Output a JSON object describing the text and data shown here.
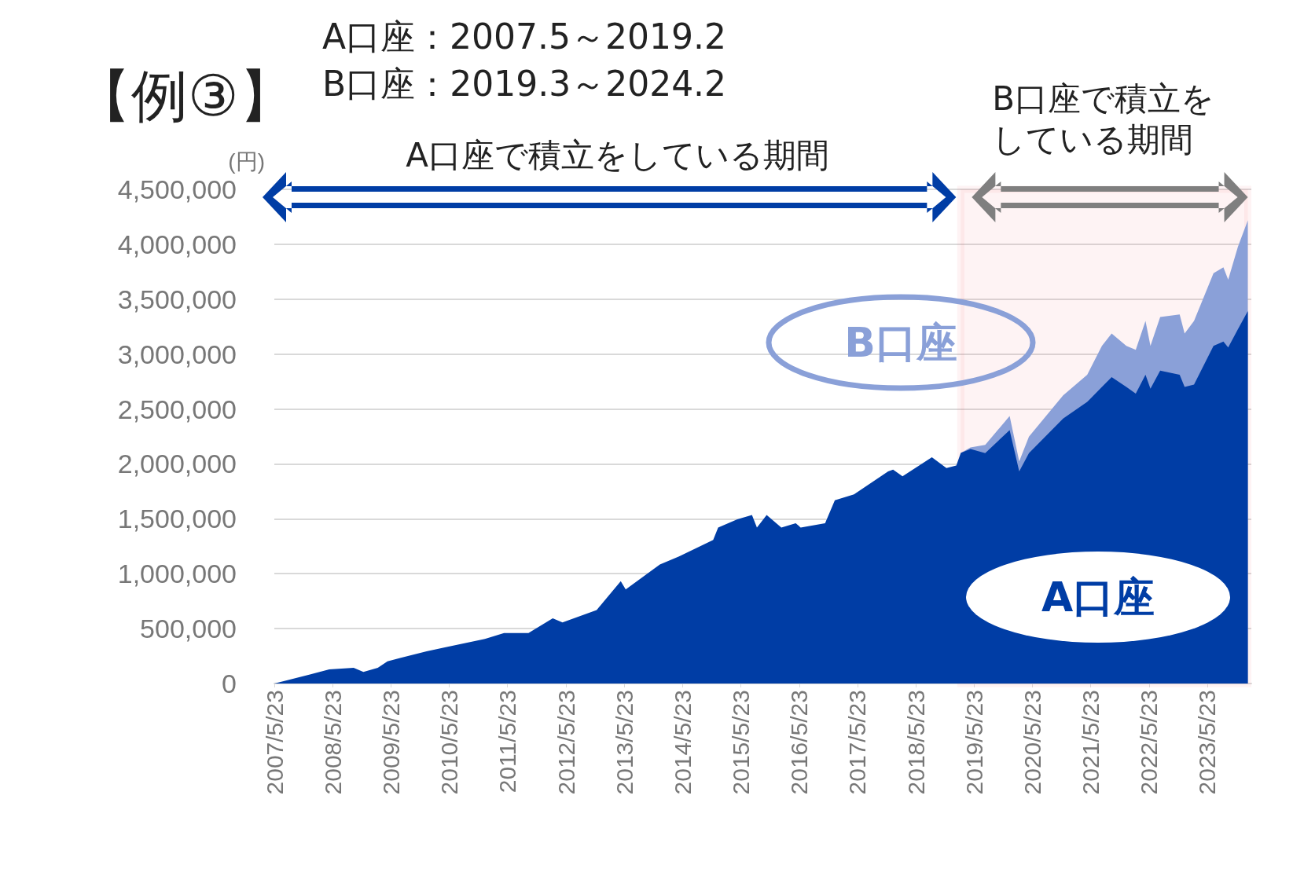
{
  "chart_data": {
    "type": "area",
    "title": "【例③】",
    "ylabel": "(円)",
    "annotations": [
      "A口座：2007.5～2019.2",
      "B口座：2019.3～2024.2",
      "A口座で積立をしている期間"
    ],
    "x": [
      "2007-05-23",
      "2008-01",
      "2008-05",
      "2008-10",
      "2008-12",
      "2009-03",
      "2009-05",
      "2010-01",
      "2010-05",
      "2011-01",
      "2011-05",
      "2011-10",
      "2012-03",
      "2012-05",
      "2012-12",
      "2013-05",
      "2013-06",
      "2014-01",
      "2014-05",
      "2014-12",
      "2015-01",
      "2015-05",
      "2015-08",
      "2015-09",
      "2015-11",
      "2016-02",
      "2016-05",
      "2016-06",
      "2016-11",
      "2017-01",
      "2017-05",
      "2017-12",
      "2018-01",
      "2018-03",
      "2018-09",
      "2018-12",
      "2019-02",
      "2019-03",
      "2019-05",
      "2019-08",
      "2020-01",
      "2020-03",
      "2020-05",
      "2020-12",
      "2021-05",
      "2021-08",
      "2021-10",
      "2022-01",
      "2022-03",
      "2022-05",
      "2022-06",
      "2022-08",
      "2022-12",
      "2023-01",
      "2023-03",
      "2023-07",
      "2023-09",
      "2023-10",
      "2023-12",
      "2024-02"
    ],
    "series": [
      {
        "name": "A口座",
        "color": "#003da5",
        "values": [
          0,
          83000,
          128000,
          143000,
          105000,
          143000,
          203000,
          293000,
          331000,
          406000,
          459000,
          459000,
          594000,
          556000,
          669000,
          932000,
          857000,
          1083000,
          1158000,
          1308000,
          1421000,
          1496000,
          1534000,
          1421000,
          1534000,
          1421000,
          1459000,
          1421000,
          1459000,
          1669000,
          1722000,
          1932000,
          1947000,
          1887000,
          2060000,
          1962000,
          1985000,
          2100000,
          2135000,
          2098000,
          2308000,
          1932000,
          2098000,
          2413000,
          2564000,
          2700000,
          2790000,
          2700000,
          2640000,
          2812000,
          2684000,
          2850000,
          2812000,
          2700000,
          2722000,
          3075000,
          3113000,
          3060000,
          3226000,
          3391000
        ]
      },
      {
        "name": "B口座",
        "color": "#8aa0d8",
        "values": [
          null,
          null,
          null,
          null,
          null,
          null,
          null,
          null,
          null,
          null,
          null,
          null,
          null,
          null,
          null,
          null,
          null,
          null,
          null,
          null,
          null,
          null,
          null,
          null,
          null,
          null,
          null,
          null,
          null,
          null,
          null,
          null,
          null,
          null,
          null,
          null,
          null,
          0,
          15000,
          75000,
          128000,
          91000,
          150000,
          211000,
          248000,
          375000,
          398000,
          375000,
          398000,
          489000,
          391000,
          488000,
          549000,
          488000,
          579000,
          662000,
          677000,
          617000,
          752000,
          827000
        ]
      }
    ],
    "stacked": true,
    "bands": [
      {
        "axis": "x",
        "from": "2019-03",
        "to": "2024-02",
        "label": "B口座で積立をしている期間",
        "color": "#f0606e"
      }
    ],
    "xlim": [
      "2007-05-23",
      "2024-02-23"
    ],
    "xticks": [
      {
        "value": "2007-05-23",
        "label": "2007/5/23"
      },
      {
        "value": "2008-05-23",
        "label": "2008/5/23"
      },
      {
        "value": "2009-05-23",
        "label": "2009/5/23"
      },
      {
        "value": "2010-05-23",
        "label": "2010/5/23"
      },
      {
        "value": "2011-05-23",
        "label": "2011/5/23"
      },
      {
        "value": "2012-05-23",
        "label": "2012/5/23"
      },
      {
        "value": "2013-05-23",
        "label": "2013/5/23"
      },
      {
        "value": "2014-05-23",
        "label": "2014/5/23"
      },
      {
        "value": "2015-05-23",
        "label": "2015/5/23"
      },
      {
        "value": "2016-05-23",
        "label": "2016/5/23"
      },
      {
        "value": "2017-05-23",
        "label": "2017/5/23"
      },
      {
        "value": "2018-05-23",
        "label": "2018/5/23"
      },
      {
        "value": "2019-05-23",
        "label": "2019/5/23"
      },
      {
        "value": "2020-05-23",
        "label": "2020/5/23"
      },
      {
        "value": "2021-05-23",
        "label": "2021/5/23"
      },
      {
        "value": "2022-05-23",
        "label": "2022/5/23"
      },
      {
        "value": "2023-05-23",
        "label": "2023/5/23"
      }
    ],
    "ylim": [
      0,
      4500000
    ],
    "yticks": [
      {
        "value": 0,
        "label": "0"
      },
      {
        "value": 500000,
        "label": "500,000"
      },
      {
        "value": 1000000,
        "label": "1,000,000"
      },
      {
        "value": 1500000,
        "label": "1,500,000"
      },
      {
        "value": 2000000,
        "label": "2,000,000"
      },
      {
        "value": 2500000,
        "label": "2,500,000"
      },
      {
        "value": 3000000,
        "label": "3,000,000"
      },
      {
        "value": 3500000,
        "label": "3,500,000"
      },
      {
        "value": 4000000,
        "label": "4,000,000"
      },
      {
        "value": 4500000,
        "label": "4,500,000"
      }
    ],
    "grid": "y",
    "legend": false,
    "marker": "none"
  }
}
